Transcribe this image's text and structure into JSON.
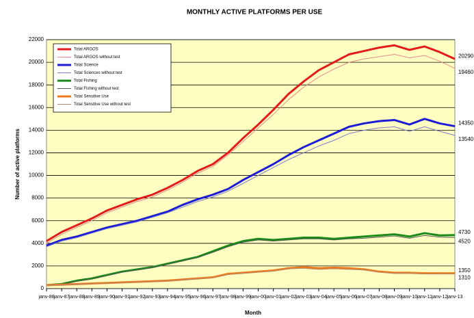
{
  "chart_data": {
    "type": "line",
    "title": "MONTHLY ACTIVE PLATFORMS PER USE",
    "xlabel": "Month",
    "ylabel": "Number of active platforms",
    "categories": [
      "janv-86",
      "janv-87",
      "janv-88",
      "janv-89",
      "janv-90",
      "janv-91",
      "janv-92",
      "janv-93",
      "janv-94",
      "janv-95",
      "janv-96",
      "janv-97",
      "janv-98",
      "janv-99",
      "janv-00",
      "janv-01",
      "janv-02",
      "janv-03",
      "janv-04",
      "janv-05",
      "janv-06",
      "janv-07",
      "janv-08",
      "janv-09",
      "janv-10",
      "janv-11",
      "janv-12",
      "janv-13"
    ],
    "series": [
      {
        "name": "Total ARGOS",
        "color": "#e31b1b",
        "width": 3,
        "values": [
          4200,
          5000,
          5600,
          6200,
          6900,
          7400,
          7900,
          8300,
          8900,
          9600,
          10400,
          11000,
          12000,
          13300,
          14500,
          15800,
          17200,
          18300,
          19300,
          20000,
          20700,
          21000,
          21300,
          21500,
          21100,
          21400,
          20900,
          20290
        ]
      },
      {
        "name": "Total ARGOS without test",
        "color": "#e58a8a",
        "width": 1,
        "values": [
          4000,
          4800,
          5400,
          6000,
          6700,
          7200,
          7700,
          8100,
          8700,
          9400,
          10200,
          10800,
          11800,
          13000,
          14200,
          15400,
          16700,
          17800,
          18700,
          19400,
          20000,
          20300,
          20500,
          20700,
          20400,
          20600,
          20100,
          19460
        ]
      },
      {
        "name": "Total Science",
        "color": "#1c1cd6",
        "width": 3,
        "values": [
          3800,
          4300,
          4600,
          5000,
          5400,
          5700,
          6000,
          6400,
          6800,
          7400,
          7900,
          8300,
          8800,
          9600,
          10300,
          11000,
          11800,
          12500,
          13100,
          13700,
          14300,
          14600,
          14800,
          14900,
          14500,
          15000,
          14600,
          14350
        ]
      },
      {
        "name": "Total Sciences without test",
        "color": "#7c7cc8",
        "width": 1,
        "values": [
          3700,
          4200,
          4500,
          4900,
          5300,
          5600,
          5900,
          6300,
          6700,
          7200,
          7700,
          8100,
          8600,
          9300,
          10000,
          10700,
          11400,
          12000,
          12600,
          13100,
          13700,
          14000,
          14200,
          14300,
          13900,
          14300,
          13900,
          13540
        ]
      },
      {
        "name": "Total Fishing",
        "color": "#1a8a1a",
        "width": 3,
        "values": [
          300,
          400,
          700,
          900,
          1200,
          1500,
          1700,
          1900,
          2200,
          2500,
          2800,
          3300,
          3800,
          4200,
          4400,
          4300,
          4400,
          4500,
          4500,
          4400,
          4500,
          4600,
          4700,
          4800,
          4600,
          4900,
          4700,
          4730
        ]
      },
      {
        "name": "Total Fishing without test",
        "color": "#555555",
        "width": 1,
        "values": [
          280,
          380,
          650,
          850,
          1150,
          1450,
          1650,
          1850,
          2150,
          2450,
          2750,
          3200,
          3700,
          4100,
          4300,
          4200,
          4300,
          4400,
          4400,
          4300,
          4400,
          4450,
          4550,
          4650,
          4450,
          4700,
          4550,
          4520
        ]
      },
      {
        "name": "Total Sensitive Use",
        "color": "#f07a1e",
        "width": 3,
        "values": [
          300,
          350,
          400,
          450,
          500,
          550,
          600,
          650,
          700,
          800,
          900,
          1000,
          1300,
          1400,
          1500,
          1600,
          1800,
          1900,
          1800,
          1850,
          1800,
          1700,
          1500,
          1400,
          1400,
          1350,
          1350,
          1350
        ]
      },
      {
        "name": "Total Sensitive Use without test",
        "color": "#b08a70",
        "width": 1,
        "values": [
          280,
          330,
          380,
          430,
          480,
          520,
          570,
          620,
          670,
          760,
          860,
          950,
          1250,
          1350,
          1450,
          1550,
          1750,
          1800,
          1700,
          1750,
          1700,
          1650,
          1450,
          1350,
          1350,
          1300,
          1300,
          1310
        ]
      }
    ],
    "ylim": [
      0,
      22000
    ],
    "yticks": [
      0,
      2000,
      4000,
      6000,
      8000,
      10000,
      12000,
      14000,
      16000,
      18000,
      20000,
      22000
    ],
    "grid": true,
    "legend": "upper left",
    "background": "#ffffc2"
  }
}
